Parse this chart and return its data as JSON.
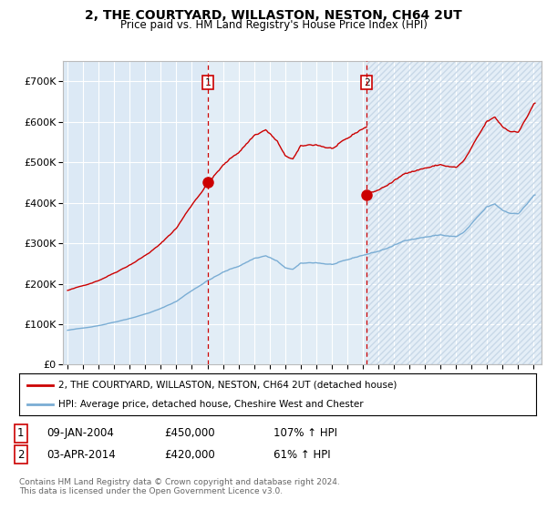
{
  "title": "2, THE COURTYARD, WILLASTON, NESTON, CH64 2UT",
  "subtitle": "Price paid vs. HM Land Registry's House Price Index (HPI)",
  "bg_color": "#dce9f5",
  "red_color": "#cc0000",
  "blue_color": "#7aadd4",
  "sale1_x": 2004.04,
  "sale1_price": 450000,
  "sale2_x": 2014.25,
  "sale2_price": 420000,
  "legend_line1": "2, THE COURTYARD, WILLASTON, NESTON, CH64 2UT (detached house)",
  "legend_line2": "HPI: Average price, detached house, Cheshire West and Chester",
  "footer": "Contains HM Land Registry data © Crown copyright and database right 2024.\nThis data is licensed under the Open Government Licence v3.0.",
  "ylim": [
    0,
    750000
  ],
  "xlim_start": 1994.7,
  "xlim_end": 2025.5
}
